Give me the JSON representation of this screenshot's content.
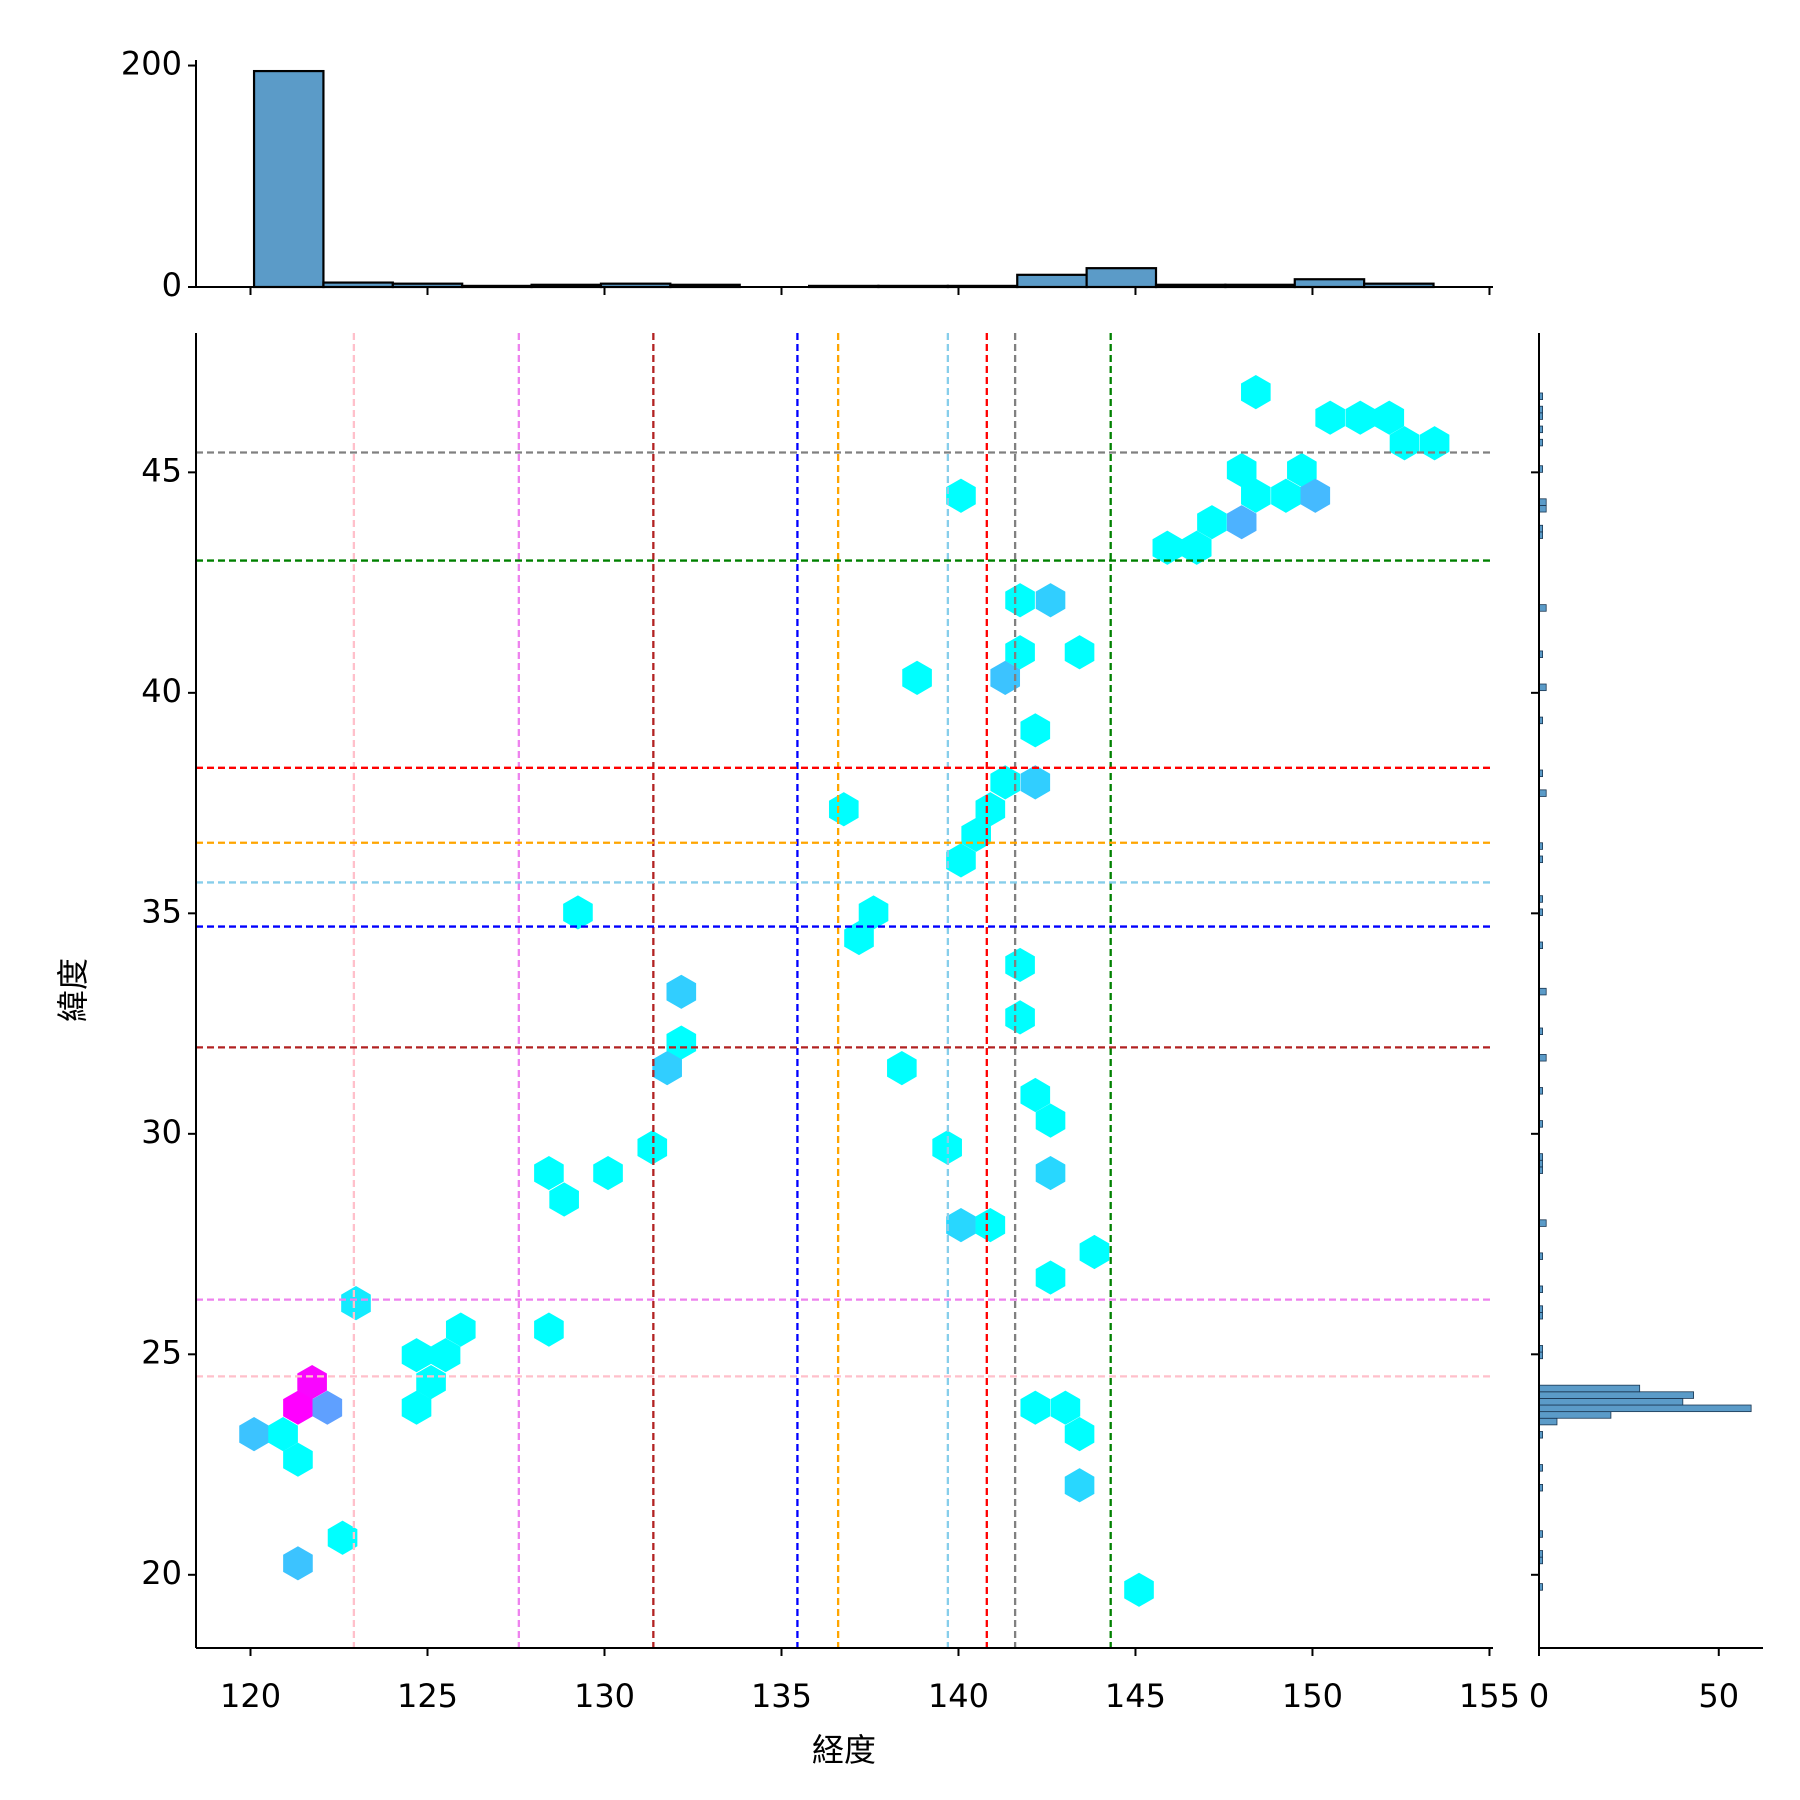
{
  "chart_data": [
    {
      "type": "hexbin",
      "xlabel": "経度",
      "ylabel": "緯度",
      "cmap": "cool",
      "x": [
        148.4,
        150.5,
        151.35,
        152.17,
        152.6,
        153.45,
        148.0,
        149.7,
        140.07,
        148.4,
        149.25,
        150.08,
        148.0,
        147.16,
        145.9,
        146.73,
        141.74,
        142.6,
        141.74,
        143.42,
        138.83,
        141.32,
        142.17,
        136.76,
        141.32,
        142.17,
        140.9,
        140.5,
        140.07,
        137.6,
        137.19,
        129.25,
        132.17,
        132.17,
        131.77,
        141.74,
        141.74,
        138.4,
        142.17,
        142.6,
        131.35,
        139.68,
        128.43,
        130.1,
        128.86,
        142.6,
        140.07,
        140.9,
        143.84,
        142.6,
        122.98,
        125.94,
        128.43,
        124.69,
        125.51,
        125.1,
        124.69,
        121.74,
        121.34,
        122.17,
        120.1,
        120.92,
        121.34,
        142.17,
        143.02,
        143.42,
        143.42,
        122.6,
        121.34,
        145.1
      ],
      "y": [
        46.82,
        46.24,
        46.24,
        46.24,
        45.66,
        45.66,
        45.05,
        45.05,
        44.47,
        44.47,
        44.47,
        44.47,
        43.87,
        43.87,
        43.29,
        43.29,
        42.1,
        42.1,
        40.92,
        40.92,
        40.34,
        40.34,
        39.15,
        37.36,
        37.97,
        37.97,
        37.36,
        36.78,
        36.2,
        35.02,
        34.44,
        35.02,
        33.22,
        32.07,
        31.49,
        33.83,
        32.64,
        31.49,
        30.88,
        30.3,
        29.69,
        29.69,
        29.11,
        29.11,
        28.51,
        29.11,
        27.93,
        27.93,
        27.32,
        26.74,
        26.16,
        25.56,
        25.56,
        24.98,
        24.98,
        24.37,
        23.79,
        24.37,
        23.79,
        23.79,
        23.19,
        23.19,
        22.61,
        23.79,
        23.79,
        23.19,
        22.03,
        20.84,
        20.26,
        19.66
      ],
      "counts": [
        1,
        1,
        1,
        1,
        1,
        1,
        1,
        1,
        1,
        1,
        1,
        25,
        28,
        1,
        1,
        1,
        1,
        18,
        1,
        1,
        1,
        22,
        1,
        1,
        1,
        18,
        1,
        1,
        1,
        1,
        1,
        1,
        18,
        1,
        18,
        1,
        1,
        1,
        1,
        1,
        1,
        1,
        1,
        1,
        1,
        15,
        15,
        1,
        1,
        1,
        8,
        1,
        1,
        1,
        1,
        1,
        1,
        88,
        90,
        34,
        22,
        1,
        1,
        1,
        1,
        1,
        15,
        1,
        22,
        1
      ],
      "xlim": [
        118.46,
        155.1
      ],
      "ylim": [
        18.34,
        48.16
      ],
      "xticks": [
        120,
        125,
        130,
        135,
        140,
        145,
        150,
        155
      ],
      "yticks": [
        20,
        25,
        30,
        35,
        40,
        45
      ],
      "vlines": [
        {
          "x": 122.92,
          "color": "pink"
        },
        {
          "x": 127.58,
          "color": "violet"
        },
        {
          "x": 131.38,
          "color": "#b22222"
        },
        {
          "x": 135.45,
          "color": "blue"
        },
        {
          "x": 136.6,
          "color": "orange"
        },
        {
          "x": 139.7,
          "color": "skyblue"
        },
        {
          "x": 140.8,
          "color": "red"
        },
        {
          "x": 141.6,
          "color": "gray"
        },
        {
          "x": 144.3,
          "color": "green"
        }
      ],
      "hlines": [
        {
          "y": 45.45,
          "color": "gray"
        },
        {
          "y": 43.0,
          "color": "green"
        },
        {
          "y": 38.3,
          "color": "red"
        },
        {
          "y": 36.6,
          "color": "orange"
        },
        {
          "y": 35.7,
          "color": "skyblue"
        },
        {
          "y": 34.7,
          "color": "blue"
        },
        {
          "y": 31.96,
          "color": "#b22222"
        },
        {
          "y": 26.24,
          "color": "violet"
        },
        {
          "y": 24.5,
          "color": "pink"
        }
      ]
    },
    {
      "type": "histogram",
      "orientation": "vertical",
      "color": "#5b9bc8",
      "bins": [
        120.1,
        122.06,
        124.02,
        125.98,
        127.94,
        129.9,
        131.86,
        133.82,
        135.78,
        137.74,
        139.7,
        141.66,
        143.62,
        145.58,
        147.54,
        149.5,
        151.46,
        153.42
      ],
      "counts": [
        195,
        4,
        3,
        1,
        2,
        3,
        2,
        0,
        1,
        1,
        1,
        11,
        17,
        2,
        2,
        7,
        3
      ],
      "ylim": [
        0,
        205
      ],
      "yticks": [
        0,
        200
      ]
    },
    {
      "type": "histogram",
      "orientation": "horizontal",
      "color": "#5b9bc8",
      "bins": [
        19.5,
        19.65,
        19.8,
        19.95,
        20.1,
        20.25,
        20.4,
        20.55,
        20.7,
        20.85,
        21,
        21.15,
        21.3,
        21.45,
        21.6,
        21.75,
        21.9,
        22.05,
        22.2,
        22.35,
        22.5,
        22.65,
        22.8,
        22.95,
        23.1,
        23.25,
        23.4,
        23.55,
        23.7,
        23.85,
        24,
        24.15,
        24.3,
        24.45,
        24.6,
        24.75,
        24.9,
        25.05,
        25.2,
        25.35,
        25.5,
        25.65,
        25.8,
        25.95,
        26.1,
        26.25,
        26.4,
        26.55,
        26.7,
        26.85,
        27,
        27.15,
        27.3,
        27.45,
        27.6,
        27.75,
        27.9,
        28.05,
        28.2,
        28.35,
        28.5,
        28.65,
        28.8,
        28.95,
        29.1,
        29.25,
        29.4,
        29.55,
        29.7,
        29.85,
        30,
        30.15,
        30.3,
        30.45,
        30.6,
        30.75,
        30.9,
        31.05,
        31.2,
        31.35,
        31.5,
        31.65,
        31.8,
        31.95,
        32.1,
        32.25,
        32.4,
        32.55,
        32.7,
        32.85,
        33,
        33.15,
        33.3,
        33.45,
        33.6,
        33.75,
        33.9,
        34.05,
        34.2,
        34.35,
        34.5,
        34.65,
        34.8,
        34.95,
        35.1,
        35.25,
        35.4,
        35.55,
        35.7,
        35.85,
        36,
        36.15,
        36.3,
        36.45,
        36.6,
        36.75,
        36.9,
        37.05,
        37.2,
        37.35,
        37.5,
        37.65,
        37.8,
        37.95,
        38.1,
        38.25,
        38.4,
        38.55,
        38.7,
        38.85,
        39,
        39.15,
        39.3,
        39.45,
        39.6,
        39.75,
        39.9,
        40.05,
        40.2,
        40.35,
        40.5,
        40.65,
        40.8,
        40.95,
        41.1,
        41.25,
        41.4,
        41.55,
        41.7,
        41.85,
        42,
        42.15,
        42.3,
        42.45,
        42.6,
        42.75,
        42.9,
        43.05,
        43.2,
        43.35,
        43.5,
        43.65,
        43.8,
        43.95,
        44.1,
        44.25,
        44.4,
        44.55,
        44.7,
        44.85,
        45,
        45.15,
        45.3,
        45.45,
        45.6,
        45.75,
        45.9,
        46.05,
        46.2,
        46.35,
        46.5,
        46.65,
        46.8
      ],
      "counts": [
        0,
        1,
        0,
        0,
        0,
        1,
        1,
        0,
        0,
        1,
        0,
        0,
        0,
        0,
        0,
        0,
        1,
        0,
        0,
        1,
        0,
        0,
        0,
        0,
        1,
        0,
        5,
        20,
        59,
        40,
        43,
        28,
        0,
        0,
        0,
        0,
        1,
        1,
        0,
        0,
        0,
        0,
        1,
        1,
        0,
        0,
        1,
        0,
        0,
        0,
        0,
        1,
        0,
        0,
        0,
        0,
        2,
        0,
        0,
        0,
        0,
        0,
        0,
        0,
        1,
        1,
        1,
        0,
        0,
        0,
        0,
        1,
        0,
        0,
        0,
        0,
        1,
        0,
        0,
        0,
        0,
        2,
        0,
        0,
        0,
        1,
        0,
        0,
        0,
        0,
        0,
        2,
        0,
        0,
        0,
        0,
        0,
        0,
        1,
        0,
        0,
        0,
        0,
        1,
        0,
        1,
        0,
        0,
        0,
        0,
        0,
        1,
        0,
        1,
        0,
        0,
        0,
        0,
        0,
        0,
        0,
        2,
        0,
        0,
        1,
        0,
        0,
        0,
        0,
        0,
        0,
        0,
        1,
        0,
        0,
        0,
        0,
        2,
        0,
        0,
        0,
        0,
        1,
        0,
        0,
        0,
        0,
        0,
        0,
        2,
        0,
        0,
        0,
        0,
        0,
        0,
        0,
        0,
        0,
        0,
        1,
        1,
        0,
        0,
        2,
        2,
        0,
        0,
        0,
        0,
        1,
        0,
        0,
        0,
        1,
        0,
        1,
        0,
        1,
        1,
        0,
        1
      ],
      "xlim": [
        0,
        62.3
      ],
      "xticks": [
        0,
        50
      ]
    }
  ]
}
